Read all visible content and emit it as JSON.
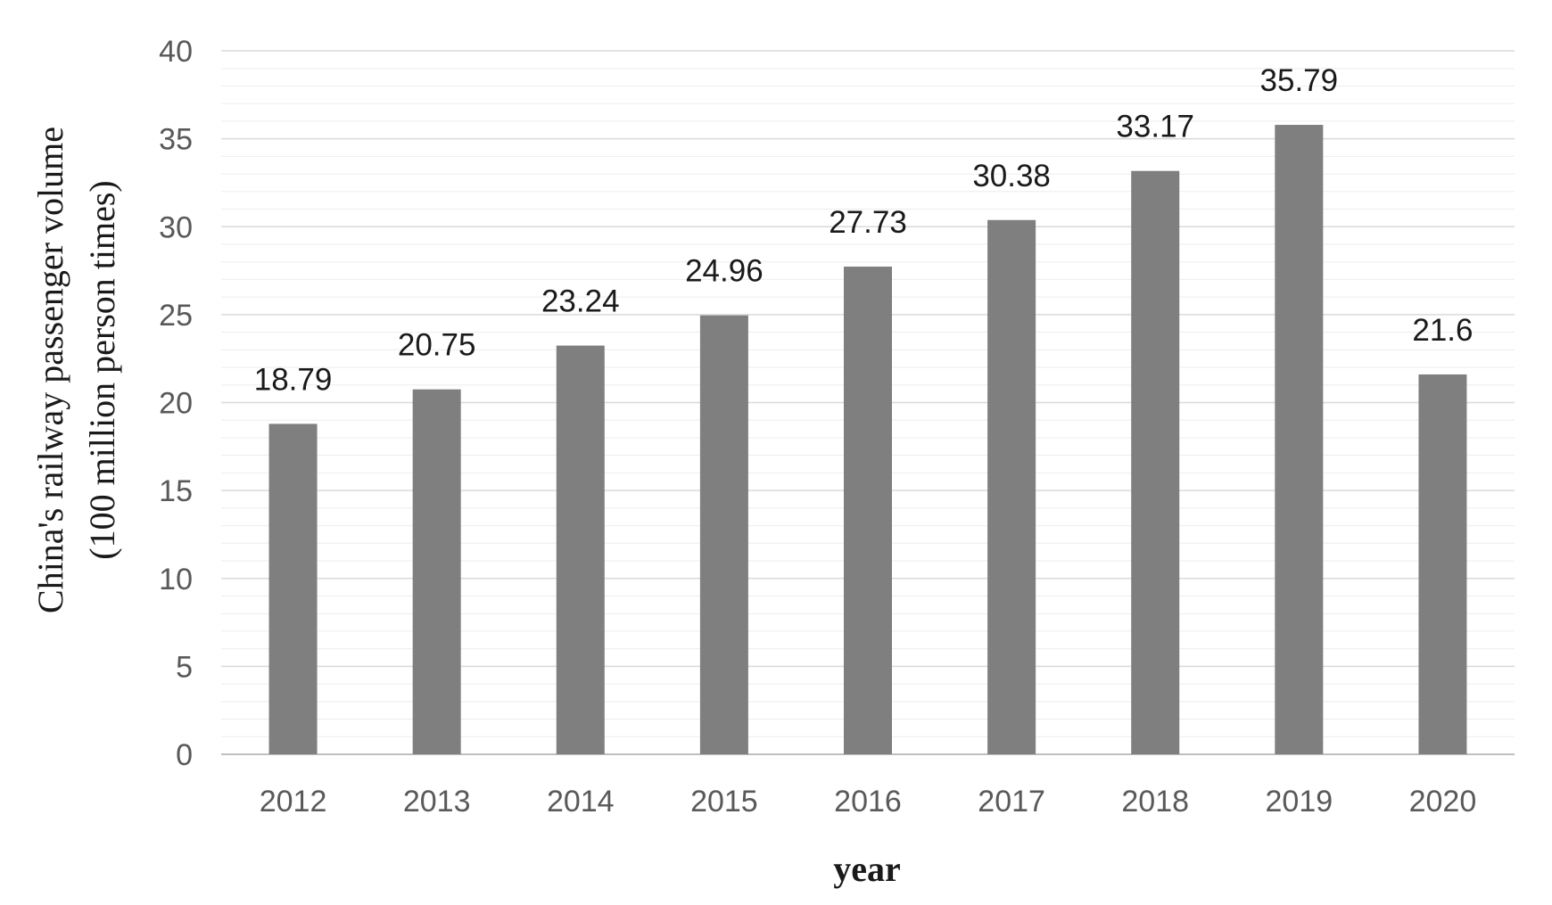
{
  "chart_data": {
    "type": "bar",
    "categories": [
      "2012",
      "2013",
      "2014",
      "2015",
      "2016",
      "2017",
      "2018",
      "2019",
      "2020"
    ],
    "values": [
      18.79,
      20.75,
      23.24,
      24.96,
      27.73,
      30.38,
      33.17,
      35.79,
      21.6
    ],
    "data_labels": [
      "18.79",
      "20.75",
      "23.24",
      "24.96",
      "27.73",
      "30.38",
      "33.17",
      "35.79",
      "21.6"
    ],
    "y_ticks": [
      "0",
      "5",
      "10",
      "15",
      "20",
      "25",
      "30",
      "35",
      "40"
    ],
    "ylim": [
      0,
      40
    ],
    "title": "",
    "xlabel": "year",
    "ylabel_line1": "China's railway passenger volume",
    "ylabel_line2": "(100 million person times)",
    "grid": true,
    "legend": "none",
    "colors": {
      "bar": "#7f7f7f",
      "gridline": "#d9d9d9",
      "minor_gridline": "#ededed",
      "axis": "#bfbfbf"
    }
  }
}
